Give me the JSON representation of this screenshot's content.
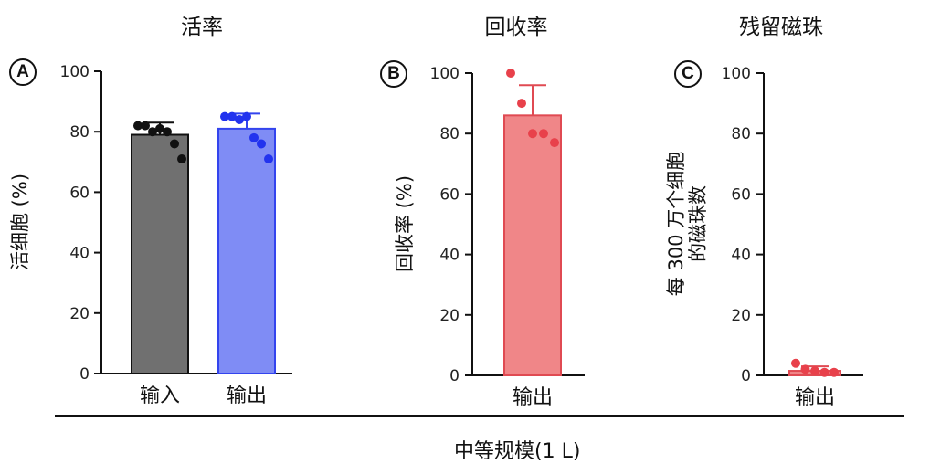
{
  "figure": {
    "footer_label": "中等规模(1 L)",
    "colors": {
      "axis": "#111111",
      "dark_grey": "#707070",
      "blue": "#7f8cf5",
      "blue_dot": "#2233ee",
      "red": "#f08688",
      "red_dot": "#e8414b",
      "dot_black": "#111111"
    }
  },
  "chart_data": [
    {
      "panel": "A",
      "type": "bar",
      "title": "活率",
      "ylabel": "活细胞 (%)",
      "ylim": [
        0,
        100
      ],
      "yticks": [
        0,
        20,
        40,
        60,
        80,
        100
      ],
      "categories": [
        "输入",
        "输出"
      ],
      "values": [
        79,
        81
      ],
      "errors": [
        4,
        5
      ],
      "bar_colors": [
        "#707070",
        "#7f8cf5"
      ],
      "dot_colors": [
        "#111111",
        "#2233ee"
      ],
      "points": [
        [
          82,
          82,
          80,
          81,
          80,
          76,
          71
        ],
        [
          85,
          85,
          84,
          85,
          78,
          76,
          71
        ]
      ]
    },
    {
      "panel": "B",
      "type": "bar",
      "title": "回收率",
      "ylabel": "回收率 (%)",
      "ylim": [
        0,
        100
      ],
      "yticks": [
        0,
        20,
        40,
        60,
        80,
        100
      ],
      "categories": [
        "输出"
      ],
      "values": [
        86
      ],
      "errors": [
        10
      ],
      "bar_colors": [
        "#f08688"
      ],
      "dot_colors": [
        "#e8414b"
      ],
      "points": [
        [
          100,
          90,
          80,
          80,
          77
        ]
      ]
    },
    {
      "panel": "C",
      "type": "bar",
      "title": "残留磁珠",
      "ylabel": "每 300 万个细胞\n的磁珠数",
      "ylim": [
        0,
        100
      ],
      "yticks": [
        0,
        20,
        40,
        60,
        80,
        100
      ],
      "categories": [
        "输出"
      ],
      "values": [
        1.5
      ],
      "errors": [
        1.5
      ],
      "bar_colors": [
        "#f08688"
      ],
      "dot_colors": [
        "#e8414b"
      ],
      "points": [
        [
          4,
          2,
          1.5,
          1,
          1
        ]
      ]
    }
  ]
}
